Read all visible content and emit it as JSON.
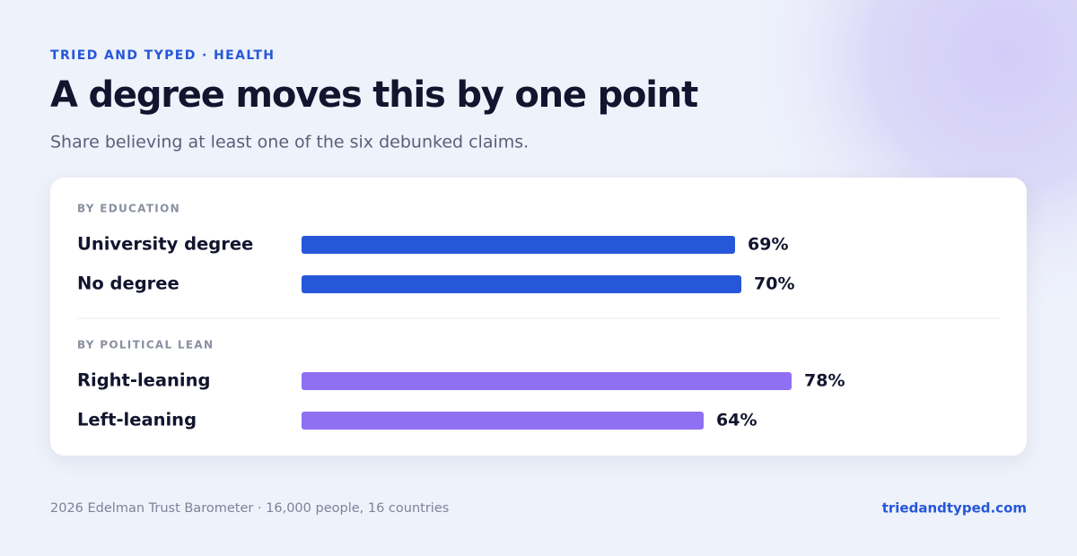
{
  "header": {
    "eyebrow": "TRIED AND TYPED · HEALTH",
    "title": "A degree moves this by one point",
    "subtitle": "Share believing at least one of the six debunked claims."
  },
  "chart_data": [
    {
      "type": "bar",
      "title": "BY EDUCATION",
      "categories": [
        "University degree",
        "No degree"
      ],
      "values": [
        69,
        70
      ],
      "value_labels": [
        "69%",
        "70%"
      ],
      "color": "#2657d9"
    },
    {
      "type": "bar",
      "title": "BY POLITICAL LEAN",
      "categories": [
        "Right-leaning",
        "Left-leaning"
      ],
      "values": [
        78,
        64
      ],
      "value_labels": [
        "78%",
        "64%"
      ],
      "color": "#8f6ff2"
    }
  ],
  "footer": {
    "source": "2026 Edelman Trust Barometer · 16,000 people, 16 countries",
    "site": "triedandtyped.com"
  }
}
